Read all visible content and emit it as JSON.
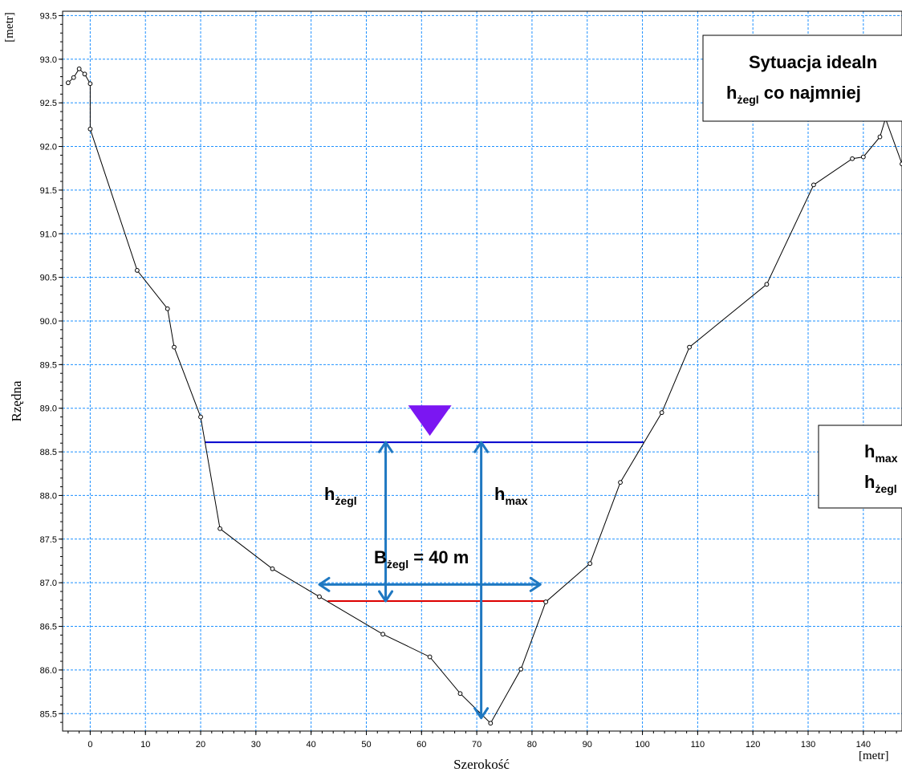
{
  "chart_data": {
    "type": "line",
    "title": "",
    "xlabel": "Szerokość",
    "ylabel": "Rzędna",
    "x_unit": "[metr]",
    "y_unit": "[metr]",
    "xlim": [
      -5,
      147
    ],
    "ylim": [
      85.3,
      93.55
    ],
    "xticks": [
      0,
      10,
      20,
      30,
      40,
      50,
      60,
      70,
      80,
      90,
      100,
      110,
      120,
      130,
      140
    ],
    "yticks": [
      85.5,
      86.0,
      86.5,
      87.0,
      87.5,
      88.0,
      88.5,
      89.0,
      89.5,
      90.0,
      90.5,
      91.0,
      91.5,
      92.0,
      92.5,
      93.0,
      93.5
    ],
    "grid": true,
    "series": [
      {
        "name": "",
        "color": "#000000",
        "x": [
          -4,
          -3,
          -2,
          -1,
          0,
          0,
          8.5,
          14,
          15.2,
          20,
          23.5,
          33,
          41.5,
          53,
          61.5,
          67,
          72.5,
          78,
          82.5,
          90.5,
          96,
          103.5,
          108.5,
          122.5,
          131,
          138,
          140,
          143,
          144,
          147
        ],
        "y": [
          92.73,
          92.79,
          92.89,
          92.83,
          92.72,
          92.2,
          90.58,
          90.14,
          89.7,
          88.9,
          87.62,
          87.16,
          86.84,
          86.41,
          86.15,
          85.73,
          85.39,
          86.01,
          86.78,
          87.22,
          88.15,
          88.95,
          89.7,
          90.42,
          91.56,
          91.86,
          91.88,
          92.11,
          92.32,
          91.8
        ]
      }
    ],
    "water_level": {
      "y": 88.61,
      "x_start": 20.8,
      "x_end": 100.2,
      "color": "#0000cc"
    },
    "navigable_bottom": {
      "y": 86.79,
      "x_start": 43,
      "x_end": 82.5,
      "color": "#dd0000"
    },
    "dimensions": [
      {
        "label_main": "h",
        "label_sub": "żegl",
        "x": 53.5,
        "y_from": 86.79,
        "y_to": 88.61
      },
      {
        "label_main": "h",
        "label_sub": "max",
        "x": 70.8,
        "y_from": 85.45,
        "y_to": 88.61
      },
      {
        "label_main": "B",
        "label_sub": "żegl",
        "label_suffix": " = 40 m",
        "y": 86.98,
        "x_from": 41.5,
        "x_to": 81.5
      }
    ],
    "water_marker_x": 61.5,
    "annotation_boxes": [
      {
        "line1": "Sytuacja idealn",
        "line2_main": "h",
        "line2_sub": "żegl",
        "line2_rest": " co najmniej"
      },
      {
        "line1_main": "h",
        "line1_sub": "max",
        "line2_main": "h",
        "line2_sub": "żegl"
      }
    ],
    "colors": {
      "grid": "#1e90ff",
      "dimension_arrow": "#1f78c1",
      "marker": "#7b16f2"
    }
  }
}
